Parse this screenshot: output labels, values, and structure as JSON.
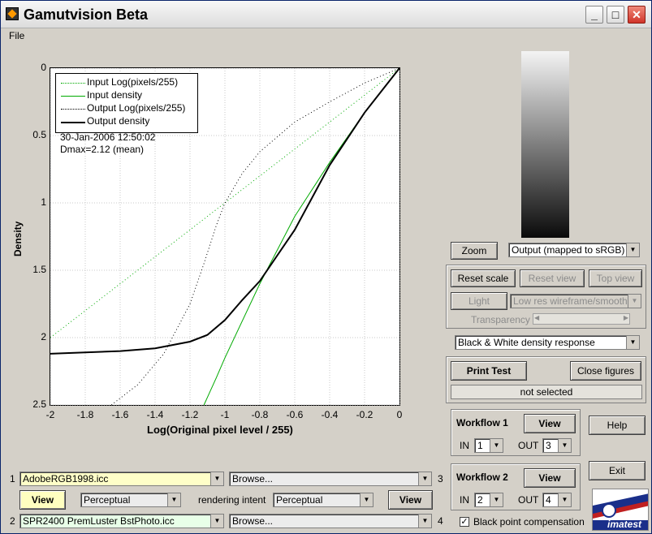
{
  "window": {
    "title": "Gamutvision Beta"
  },
  "menu": {
    "file": "File"
  },
  "plot": {
    "ylabel": "Density",
    "xlabel": "Log(Original pixel level / 255)",
    "xticks": [
      "-2",
      "-1.8",
      "-1.6",
      "-1.4",
      "-1.2",
      "-1",
      "-0.8",
      "-0.6",
      "-0.4",
      "-0.2",
      "0"
    ],
    "yticks": [
      "0",
      "0.5",
      "1",
      "1.5",
      "2",
      "2.5"
    ],
    "legend": [
      "Input Log(pixels/255)",
      "Input density",
      "Output Log(pixels/255)",
      "Output density"
    ],
    "date": "30-Jan-2006 12:50:02",
    "dmax": "Dmax=2.12 (mean)",
    "colors": {
      "input": "#00aa00",
      "output": "#000000"
    }
  },
  "chart_data": {
    "type": "line",
    "xlabel": "Log(Original pixel level / 255)",
    "ylabel": "Density",
    "xlim": [
      -2,
      0
    ],
    "ylim": [
      0,
      2.5
    ],
    "y_reversed": true,
    "legend_position": "top-left",
    "series": [
      {
        "name": "Input Log(pixels/255)",
        "style": "dotted",
        "color": "#00aa00",
        "x": [
          -2,
          0
        ],
        "y": [
          2,
          0
        ]
      },
      {
        "name": "Input density",
        "style": "solid",
        "color": "#00aa00",
        "x": [
          -1.12,
          -1.05,
          -1.0,
          -0.8,
          -0.6,
          -0.4,
          -0.2,
          0
        ],
        "y": [
          2.5,
          2.3,
          2.15,
          1.6,
          1.1,
          0.7,
          0.33,
          0
        ]
      },
      {
        "name": "Output Log(pixels/255)",
        "style": "dotted",
        "color": "#000000",
        "x": [
          -1.65,
          -1.5,
          -1.35,
          -1.2,
          -1.12,
          -1.05,
          -1.0,
          -0.9,
          -0.8,
          -0.6,
          -0.4,
          -0.2,
          0
        ],
        "y": [
          2.5,
          2.35,
          2.12,
          1.75,
          1.45,
          1.17,
          1.0,
          0.78,
          0.62,
          0.4,
          0.25,
          0.11,
          0
        ]
      },
      {
        "name": "Output density",
        "style": "solid",
        "color": "#000000",
        "x": [
          -2,
          -1.6,
          -1.4,
          -1.2,
          -1.1,
          -1.0,
          -0.9,
          -0.8,
          -0.6,
          -0.4,
          -0.2,
          0
        ],
        "y": [
          2.12,
          2.1,
          2.08,
          2.03,
          1.98,
          1.87,
          1.72,
          1.58,
          1.2,
          0.72,
          0.33,
          0
        ]
      }
    ]
  },
  "gradient_swatch": {
    "from": "#ffffff",
    "to": "#000000"
  },
  "controls": {
    "zoom": "Zoom",
    "output_mode": "Output (mapped to sRGB)",
    "reset_scale": "Reset scale",
    "reset_view": "Reset view",
    "top_view": "Top view",
    "light": "Light",
    "render_mode": "Low res wireframe/smooth",
    "transparency": "Transparency 1",
    "display_type": "Black & White density response",
    "print_test": "Print Test",
    "close_figures": "Close figures",
    "status": "not selected"
  },
  "workflow1": {
    "title": "Workflow 1",
    "view": "View",
    "in_label": "IN",
    "in_value": "1",
    "out_label": "OUT",
    "out_value": "3"
  },
  "workflow2": {
    "title": "Workflow 2",
    "view": "View",
    "in_label": "IN",
    "in_value": "2",
    "out_label": "OUT",
    "out_value": "4"
  },
  "help": "Help",
  "exit": "Exit",
  "bottom": {
    "row1_num": "1",
    "profile1": "AdobeRGB1998.icc",
    "browse1": "Browse...",
    "row3_num": "3",
    "view_left": "View",
    "intent_left": "Perceptual",
    "rendering_intent": "rendering intent",
    "intent_right": "Perceptual",
    "view_right": "View",
    "row2_num": "2",
    "profile2": "SPR2400 PremLuster BstPhoto.icc",
    "browse2": "Browse...",
    "row4_num": "4",
    "black_point": "Black point compensation",
    "logo_text": "imatest"
  }
}
